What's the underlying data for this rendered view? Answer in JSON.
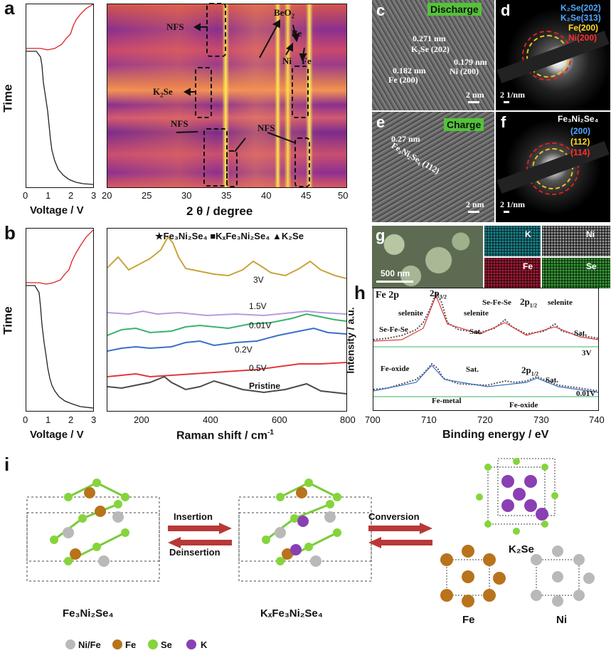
{
  "panels": {
    "a": "a",
    "b": "b",
    "c": "c",
    "d": "d",
    "e": "e",
    "f": "f",
    "g": "g",
    "h": "h",
    "i": "i"
  },
  "panel_a": {
    "ylabel": "Time",
    "xlabel": "Voltage / V",
    "xticks": [
      "0",
      "1",
      "2",
      "3"
    ]
  },
  "heatmap": {
    "xlabel": "2 θ / degree",
    "xticks": [
      "20",
      "25",
      "30",
      "35",
      "40",
      "45",
      "50"
    ],
    "labels": {
      "nfs_top": "NFS",
      "beo2": "BeO",
      "beo2_sub": "2",
      "be": "Be",
      "ni": "Ni",
      "fe": "Fe",
      "k2se_k": "K",
      "k2se_sub": "2",
      "k2se_se": "Se",
      "nfs_left": "NFS",
      "nfs_right": "NFS"
    }
  },
  "panel_b_left": {
    "ylabel": "Time",
    "xlabel": "Voltage / V",
    "xticks": [
      "0",
      "1",
      "2",
      "3"
    ]
  },
  "raman": {
    "legend": "★Fe₃Ni₂Se₄ ■KₓFe₃Ni₂Se₄ ▲K₂Se",
    "xlabel": "Raman shift / cm",
    "xlabel_sup": "-1",
    "xticks": [
      "200",
      "400",
      "600",
      "800"
    ],
    "series": [
      {
        "name": "3V",
        "color": "#c9a43a"
      },
      {
        "name": "1.5V",
        "color": "#b89be0"
      },
      {
        "name": "0.01V",
        "color": "#3ab36a"
      },
      {
        "name": "0.2V",
        "color": "#3b6fc9"
      },
      {
        "name": "0.5V",
        "color": "#e03a3a"
      },
      {
        "name": "Pristine",
        "color": "#4a4a4a"
      }
    ]
  },
  "tem_c": {
    "badge": "Discharge",
    "d1": "0.271 nm",
    "p1": "K₂Se (202)",
    "d2": "0.179 nm",
    "p2": "Ni (200)",
    "d3": "0.182 nm",
    "p3": "Fe (200)",
    "scale": "2 nm"
  },
  "saed_d": {
    "r1": "K₂Se(202)",
    "r2": "K₂Se(313)",
    "r3": "Fe(200)",
    "r4": "Ni(200)",
    "scale": "2 1/nm"
  },
  "tem_e": {
    "badge": "Charge",
    "d1": "0.27 nm",
    "p1": "Fe₃Ni₂Se₄ (112)",
    "scale": "2 nm"
  },
  "saed_f": {
    "title": "Fe₃Ni₂Se₄",
    "r1": "(200)",
    "r2": "(112)",
    "r3": "(114)",
    "scale": "2 1/nm"
  },
  "map_g": {
    "scale": "500 nm",
    "k": "K",
    "ni": "Ni",
    "fe": "Fe",
    "se": "Se"
  },
  "xps": {
    "title": "Fe 2p",
    "ylabel": "Intensity / a.u.",
    "xlabel": "Binding energy / eV",
    "xticks": [
      "700",
      "710",
      "720",
      "730",
      "740"
    ],
    "top": {
      "p32": "2p",
      "p32_sub": "3/2",
      "sefese_top": "Se-Fe-Se",
      "p12": "2p",
      "p12_sub": "1/2",
      "selenite1": "selenite",
      "selenite2": "selenite",
      "selenite3": "selenite",
      "sefese_left": "Se-Fe-Se",
      "sat1": "Sat.",
      "sat2": "Sat.",
      "v": "3V"
    },
    "bottom": {
      "feoxide1": "Fe-oxide",
      "sat1": "Sat.",
      "p12": "2p",
      "p12_sub": "1/2",
      "sat2": "Sat.",
      "femetal": "Fe-metal",
      "feoxide2": "Fe-oxide",
      "v": "0.01V"
    }
  },
  "scheme": {
    "insertion": "Insertion",
    "deinsertion": "Deinsertion",
    "conversion": "Conversion",
    "s1": "Fe₃Ni₂Se₄",
    "s2": "KₓFe₃Ni₂Se₄",
    "k2se": "K₂Se",
    "fe": "Fe",
    "ni": "Ni",
    "legend": {
      "nife": "Ni/Fe",
      "fe": "Fe",
      "se": "Se",
      "k": "K"
    },
    "colors": {
      "nife": "#b9b9b9",
      "fe": "#b8731c",
      "se": "#86d43b",
      "k": "#8a3fb3",
      "arrow": "#b83838"
    }
  }
}
